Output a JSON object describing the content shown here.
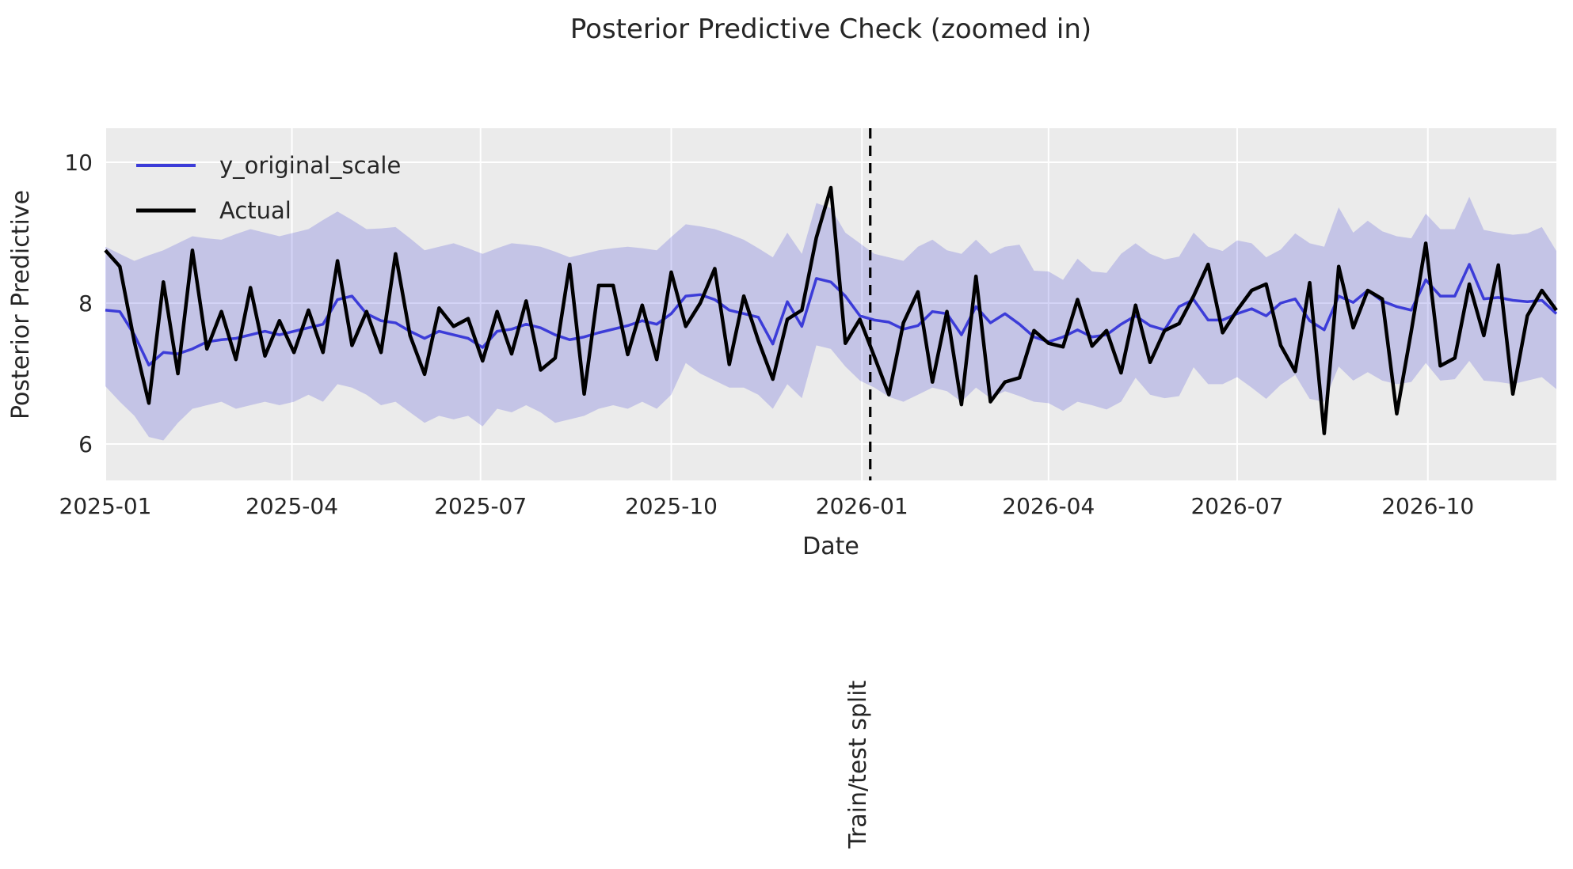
{
  "title": "Posterior Predictive Check (zoomed in)",
  "xlabel": "Date",
  "ylabel": "Posterior Predictive",
  "annotation": "Train/test split",
  "colors": {
    "figure_bg": "#ffffff",
    "plot_bg": "#ebebeb",
    "grid": "#ffffff",
    "predicted_line": "#3c3cd8",
    "band_fill": "#3c3cd8",
    "band_opacity": "0.22",
    "actual_line": "#000000",
    "split_line": "#000000",
    "text": "#262626"
  },
  "legend": [
    {
      "label": "y_original_scale",
      "color": "#3c3cd8"
    },
    {
      "label": "Actual",
      "color": "#000000"
    }
  ],
  "chart_data": {
    "type": "line",
    "title": "Posterior Predictive Check (zoomed in)",
    "xlabel": "Date",
    "ylabel": "Posterior Predictive",
    "legend_position": "upper left",
    "grid": true,
    "start_date": "2025-01-01",
    "interval_days": 7,
    "days_total": 700,
    "split_day": 369,
    "split_label": "Train/test split",
    "x_ticks": [
      {
        "day": 0,
        "label": "2025-01"
      },
      {
        "day": 90,
        "label": "2025-04"
      },
      {
        "day": 181,
        "label": "2025-07"
      },
      {
        "day": 273,
        "label": "2025-10"
      },
      {
        "day": 365,
        "label": "2026-01"
      },
      {
        "day": 455,
        "label": "2026-04"
      },
      {
        "day": 546,
        "label": "2026-07"
      },
      {
        "day": 638,
        "label": "2026-10"
      }
    ],
    "y_ticks": [
      10,
      8,
      6
    ],
    "ylim": [
      5.48,
      10.48
    ],
    "series": [
      {
        "name": "y_original_scale",
        "color": "#3c3cd8",
        "values": [
          7.9,
          7.88,
          7.55,
          7.12,
          7.3,
          7.28,
          7.35,
          7.45,
          7.48,
          7.5,
          7.55,
          7.6,
          7.55,
          7.6,
          7.65,
          7.7,
          8.05,
          8.1,
          7.85,
          7.75,
          7.72,
          7.6,
          7.5,
          7.6,
          7.55,
          7.5,
          7.37,
          7.6,
          7.63,
          7.7,
          7.65,
          7.55,
          7.48,
          7.52,
          7.58,
          7.63,
          7.68,
          7.75,
          7.7,
          7.85,
          8.1,
          8.12,
          8.05,
          7.9,
          7.85,
          7.8,
          7.42,
          8.02,
          7.67,
          8.35,
          8.3,
          8.1,
          7.82,
          7.76,
          7.73,
          7.63,
          7.68,
          7.88,
          7.85,
          7.55,
          7.95,
          7.72,
          7.85,
          7.7,
          7.52,
          7.45,
          7.52,
          7.62,
          7.52,
          7.55,
          7.7,
          7.82,
          7.68,
          7.62,
          7.95,
          8.05,
          7.76,
          7.76,
          7.85,
          7.92,
          7.82,
          8.0,
          8.06,
          7.75,
          7.62,
          8.1,
          8.01,
          8.18,
          8.03,
          7.95,
          7.9,
          8.33,
          8.1,
          8.1,
          8.55,
          8.06,
          8.08,
          8.04,
          8.02,
          8.04,
          7.85
        ]
      },
      {
        "name": "Actual",
        "color": "#000000",
        "values": [
          8.75,
          8.52,
          7.45,
          6.58,
          8.3,
          7.0,
          8.75,
          7.35,
          7.88,
          7.2,
          8.22,
          7.25,
          7.75,
          7.3,
          7.9,
          7.3,
          8.6,
          7.4,
          7.88,
          7.3,
          8.7,
          7.54,
          6.99,
          7.93,
          7.67,
          7.78,
          7.18,
          7.88,
          7.28,
          8.03,
          7.05,
          7.22,
          8.55,
          6.71,
          8.25,
          8.25,
          7.27,
          7.97,
          7.2,
          8.44,
          7.67,
          8.0,
          8.49,
          7.13,
          8.1,
          7.47,
          6.92,
          7.77,
          7.9,
          8.93,
          9.64,
          7.43,
          7.77,
          7.24,
          6.7,
          7.72,
          8.16,
          6.88,
          7.88,
          6.56,
          8.38,
          6.6,
          6.88,
          6.94,
          7.61,
          7.43,
          7.38,
          8.05,
          7.39,
          7.61,
          7.01,
          7.97,
          7.16,
          7.61,
          7.71,
          8.1,
          8.55,
          7.58,
          7.9,
          8.18,
          8.27,
          7.4,
          7.03,
          8.29,
          6.15,
          8.52,
          7.65,
          8.18,
          8.06,
          6.43,
          7.6,
          8.85,
          7.11,
          7.22,
          8.27,
          7.54,
          8.54,
          6.71,
          7.82,
          8.18,
          7.9
        ]
      }
    ],
    "band": {
      "name": "credible interval",
      "upper": [
        8.8,
        8.7,
        8.6,
        8.68,
        8.75,
        8.85,
        8.95,
        8.92,
        8.9,
        8.98,
        9.05,
        9.0,
        8.95,
        9.0,
        9.05,
        9.18,
        9.3,
        9.18,
        9.05,
        9.06,
        9.08,
        8.92,
        8.75,
        8.8,
        8.85,
        8.78,
        8.7,
        8.78,
        8.85,
        8.83,
        8.8,
        8.73,
        8.65,
        8.7,
        8.75,
        8.78,
        8.8,
        8.78,
        8.75,
        8.94,
        9.12,
        9.09,
        9.05,
        8.98,
        8.9,
        8.78,
        8.65,
        9.0,
        8.7,
        9.42,
        9.35,
        9.0,
        8.85,
        8.7,
        8.65,
        8.6,
        8.8,
        8.9,
        8.75,
        8.7,
        8.9,
        8.7,
        8.8,
        8.83,
        8.46,
        8.45,
        8.33,
        8.63,
        8.45,
        8.43,
        8.7,
        8.85,
        8.7,
        8.62,
        8.66,
        9.0,
        8.8,
        8.74,
        8.89,
        8.85,
        8.65,
        8.76,
        8.99,
        8.85,
        8.8,
        9.36,
        9.0,
        9.17,
        9.02,
        8.95,
        8.92,
        9.27,
        9.05,
        9.05,
        9.51,
        9.04,
        9.0,
        8.97,
        8.99,
        9.08,
        8.74
      ],
      "lower": [
        6.82,
        6.6,
        6.4,
        6.1,
        6.05,
        6.3,
        6.5,
        6.55,
        6.6,
        6.5,
        6.55,
        6.6,
        6.55,
        6.6,
        6.7,
        6.6,
        6.85,
        6.8,
        6.7,
        6.55,
        6.6,
        6.45,
        6.3,
        6.4,
        6.35,
        6.4,
        6.25,
        6.5,
        6.45,
        6.55,
        6.45,
        6.3,
        6.35,
        6.4,
        6.5,
        6.55,
        6.5,
        6.6,
        6.5,
        6.7,
        7.15,
        7.0,
        6.9,
        6.8,
        6.8,
        6.7,
        6.5,
        6.85,
        6.65,
        7.4,
        7.35,
        7.1,
        6.9,
        6.8,
        6.67,
        6.6,
        6.7,
        6.8,
        6.75,
        6.6,
        6.8,
        6.65,
        6.75,
        6.68,
        6.6,
        6.58,
        6.47,
        6.6,
        6.55,
        6.49,
        6.6,
        6.94,
        6.7,
        6.65,
        6.68,
        7.09,
        6.85,
        6.85,
        6.95,
        6.8,
        6.64,
        6.84,
        6.98,
        6.64,
        6.6,
        7.1,
        6.9,
        7.02,
        6.9,
        6.85,
        6.88,
        7.15,
        6.9,
        6.92,
        7.18,
        6.9,
        6.88,
        6.85,
        6.9,
        6.95,
        6.78
      ]
    }
  }
}
